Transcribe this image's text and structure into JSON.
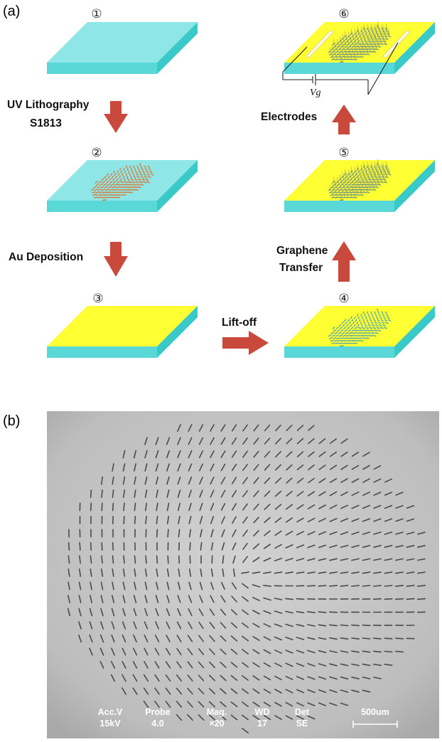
{
  "panel_a": {
    "label": "(a)",
    "steps": [
      {
        "number": "①",
        "top_color": "#8fe6e6"
      },
      {
        "number": "②",
        "top_color": "#8fe6e6"
      },
      {
        "number": "③",
        "top_color": "#ffff33"
      },
      {
        "number": "④",
        "top_color": "#ffff33"
      },
      {
        "number": "⑤",
        "top_color": "#ffff33"
      },
      {
        "number": "⑥",
        "top_color": "#ffff33"
      }
    ],
    "arrows": {
      "uv_line1": "UV Lithography",
      "uv_line2": "S1813",
      "au": "Au Deposition",
      "liftoff": "Lift-off",
      "graphene_line1": "Graphene",
      "graphene_line2": "Transfer",
      "electrodes": "Electrodes"
    },
    "gate_label": "Vg",
    "colors": {
      "substrate_side": "#39c9c9",
      "substrate_front": "#5ad8d8",
      "gold": "#ffff33",
      "gold_side": "#dede1e",
      "arrow": "#c94a3c",
      "pattern": "#d87a3a"
    }
  },
  "panel_b": {
    "label": "(b)",
    "sem_info": {
      "headers": [
        "Acc.V",
        "Probe",
        "Mag.",
        "WD",
        "Det"
      ],
      "values": [
        "15kV",
        "4.0",
        "×20",
        "17",
        "SE"
      ],
      "scale_bar": "500um"
    }
  }
}
